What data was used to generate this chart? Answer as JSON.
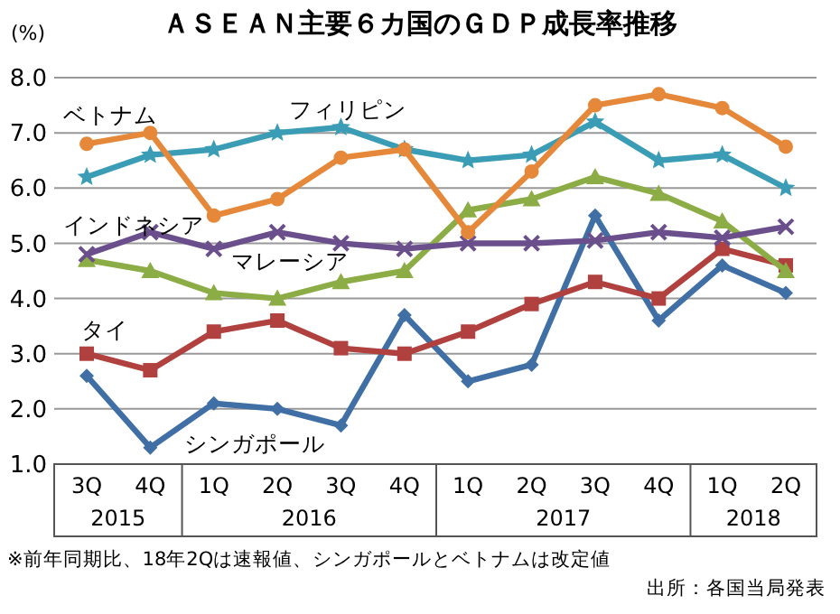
{
  "chart_data": {
    "type": "line",
    "title": "ＡＳＥＡＮ主要６カ国のＧＤＰ成長率推移",
    "ylabel": "(%)",
    "categories": [
      "3Q",
      "4Q",
      "1Q",
      "2Q",
      "3Q",
      "4Q",
      "1Q",
      "2Q",
      "3Q",
      "4Q",
      "1Q",
      "2Q"
    ],
    "series": [
      {
        "name": "ベトナム",
        "color": "#e5883a",
        "marker": "circle",
        "values": [
          6.8,
          7.0,
          5.5,
          5.8,
          6.55,
          6.7,
          5.2,
          6.3,
          7.5,
          7.7,
          7.45,
          6.75
        ]
      },
      {
        "name": "フィリピン",
        "color": "#3a9db5",
        "marker": "star",
        "values": [
          6.2,
          6.6,
          6.7,
          7.0,
          7.1,
          6.7,
          6.5,
          6.6,
          7.2,
          6.5,
          6.6,
          6.0
        ]
      },
      {
        "name": "インドネシア",
        "color": "#6a4f8c",
        "marker": "cross",
        "values": [
          4.8,
          5.2,
          4.9,
          5.2,
          5.0,
          4.9,
          5.0,
          5.0,
          5.05,
          5.2,
          5.1,
          5.3
        ]
      },
      {
        "name": "マレーシア",
        "color": "#8cac45",
        "marker": "triangle",
        "values": [
          4.7,
          4.5,
          4.1,
          4.0,
          4.3,
          4.5,
          5.6,
          5.8,
          6.2,
          5.9,
          5.4,
          4.5
        ]
      },
      {
        "name": "タイ",
        "color": "#b0413e",
        "marker": "square",
        "values": [
          3.0,
          2.7,
          3.4,
          3.6,
          3.1,
          3.0,
          3.4,
          3.9,
          4.3,
          4.0,
          4.9,
          4.6
        ]
      },
      {
        "name": "シンガポール",
        "color": "#3f6fa5",
        "marker": "diamond",
        "values": [
          2.6,
          1.3,
          2.1,
          2.0,
          1.7,
          3.7,
          2.5,
          2.8,
          5.5,
          3.6,
          4.6,
          4.1
        ]
      }
    ],
    "ylim": [
      1,
      8
    ],
    "yticks": [
      {
        "value": 1,
        "label": "1.0"
      },
      {
        "value": 2,
        "label": "2.0"
      },
      {
        "value": 3,
        "label": "3.0"
      },
      {
        "value": 4,
        "label": "4.0"
      },
      {
        "value": 5,
        "label": "5.0"
      },
      {
        "value": 6,
        "label": "6.0"
      },
      {
        "value": 7,
        "label": "7.0"
      },
      {
        "value": 8,
        "label": "8.0"
      }
    ],
    "grid": "y",
    "line_style": "solid",
    "annotations": [
      "2015",
      "2016",
      "2017",
      "2018",
      "※前年同期比、18年2Qは速報値、シンガポールとベトナムは改定値",
      "出所：各国当局発表"
    ]
  }
}
